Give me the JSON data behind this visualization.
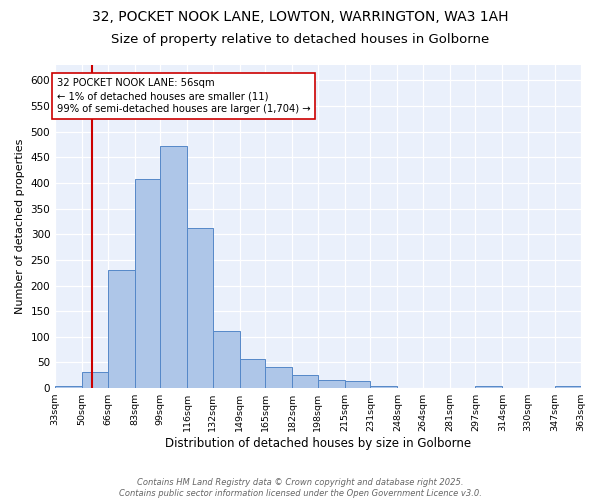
{
  "title_line1": "32, POCKET NOOK LANE, LOWTON, WARRINGTON, WA3 1AH",
  "title_line2": "Size of property relative to detached houses in Golborne",
  "xlabel": "Distribution of detached houses by size in Golborne",
  "ylabel": "Number of detached properties",
  "bin_edges": [
    33,
    50,
    66,
    83,
    99,
    116,
    132,
    149,
    165,
    182,
    198,
    215,
    231,
    248,
    264,
    281,
    297,
    314,
    330,
    347,
    363
  ],
  "bin_heights": [
    5,
    31,
    230,
    408,
    472,
    312,
    111,
    56,
    41,
    26,
    16,
    13,
    5,
    0,
    0,
    0,
    5,
    0,
    0,
    0,
    5
  ],
  "bar_facecolor": "#aec6e8",
  "bar_edgecolor": "#5588c8",
  "property_line_x": 56,
  "property_line_color": "#cc0000",
  "annotation_text": "32 POCKET NOOK LANE: 56sqm\n← 1% of detached houses are smaller (11)\n99% of semi-detached houses are larger (1,704) →",
  "annotation_box_edgecolor": "#cc0000",
  "annotation_box_facecolor": "#ffffff",
  "ylim": [
    0,
    630
  ],
  "yticks": [
    0,
    50,
    100,
    150,
    200,
    250,
    300,
    350,
    400,
    450,
    500,
    550,
    600
  ],
  "tick_labels": [
    "33sqm",
    "50sqm",
    "66sqm",
    "83sqm",
    "99sqm",
    "116sqm",
    "132sqm",
    "149sqm",
    "165sqm",
    "182sqm",
    "198sqm",
    "215sqm",
    "231sqm",
    "248sqm",
    "264sqm",
    "281sqm",
    "297sqm",
    "314sqm",
    "330sqm",
    "347sqm",
    "363sqm"
  ],
  "background_color": "#eaf0fb",
  "footer_text": "Contains HM Land Registry data © Crown copyright and database right 2025.\nContains public sector information licensed under the Open Government Licence v3.0.",
  "grid_color": "#ffffff",
  "title_fontsize": 10,
  "subtitle_fontsize": 9.5
}
